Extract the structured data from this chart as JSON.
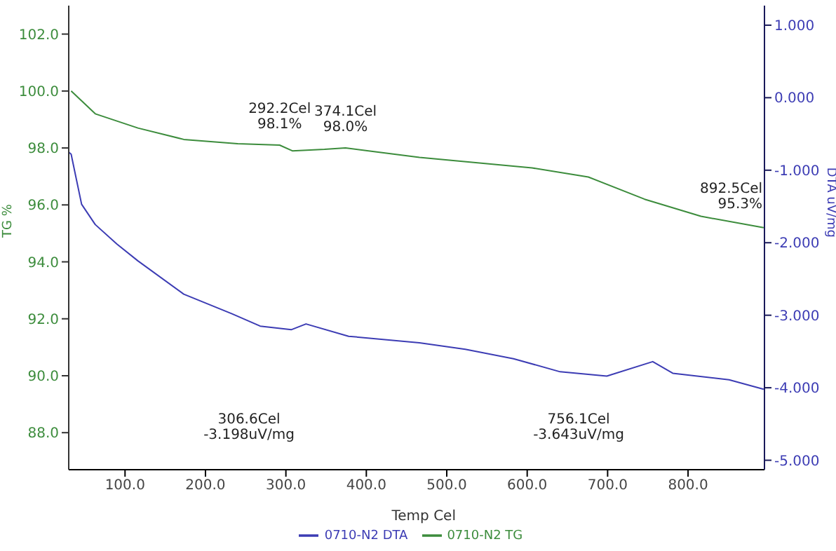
{
  "chart_data": {
    "type": "line",
    "xlabel": "Temp Cel",
    "ylabel": "TG %",
    "y2label": "DTA uV/mg",
    "xlim": [
      30,
      895
    ],
    "xticks": [
      {
        "value": 100,
        "label": "100.0"
      },
      {
        "value": 200,
        "label": "200.0"
      },
      {
        "value": 300,
        "label": "300.0"
      },
      {
        "value": 400,
        "label": "400.0"
      },
      {
        "value": 500,
        "label": "500.0"
      },
      {
        "value": 600,
        "label": "600.0"
      },
      {
        "value": 700,
        "label": "700.0"
      },
      {
        "value": 800,
        "label": "800.0"
      }
    ],
    "ylim": [
      86.7,
      103.0
    ],
    "yticks": [
      {
        "value": 88,
        "label": "88.0"
      },
      {
        "value": 90,
        "label": "90.0"
      },
      {
        "value": 92,
        "label": "92.0"
      },
      {
        "value": 94,
        "label": "94.0"
      },
      {
        "value": 96,
        "label": "96.0"
      },
      {
        "value": 98,
        "label": "98.0"
      },
      {
        "value": 100,
        "label": "100.0"
      },
      {
        "value": 102,
        "label": "102.0"
      }
    ],
    "y2lim": [
      -5.13,
      1.27
    ],
    "y2ticks": [
      {
        "value": -5,
        "label": "-5.000"
      },
      {
        "value": -4,
        "label": "-4.000"
      },
      {
        "value": -3,
        "label": "-3.000"
      },
      {
        "value": -2,
        "label": "-2.000"
      },
      {
        "value": -1,
        "label": "-1.000"
      },
      {
        "value": 0,
        "label": "0.000"
      },
      {
        "value": 1,
        "label": "1.000"
      }
    ],
    "series": [
      {
        "name": "0710-N2  DTA",
        "color": "#3c3cb4",
        "axis": "y2",
        "x": [
          30,
          33,
          46,
          63,
          90,
          116,
          173,
          233,
          268,
          306.6,
          325,
          378,
          466,
          523,
          583,
          641,
          699,
          756.1,
          781,
          851,
          894
        ],
        "values": [
          -0.75,
          -0.78,
          -1.47,
          -1.75,
          -2.02,
          -2.25,
          -2.71,
          -2.98,
          -3.15,
          -3.2,
          -3.12,
          -3.29,
          -3.38,
          -3.47,
          -3.6,
          -3.78,
          -3.84,
          -3.64,
          -3.8,
          -3.89,
          -4.02
        ]
      },
      {
        "name": "0710-N2  TG",
        "color": "#3c8c3c",
        "x": [
          33,
          63,
          116,
          173,
          240,
          292.2,
          308,
          348,
          374.1,
          413,
          466,
          606,
          676,
          746,
          816,
          894
        ],
        "values": [
          100.0,
          99.2,
          98.7,
          98.3,
          98.15,
          98.1,
          97.9,
          97.95,
          98.0,
          97.86,
          97.67,
          97.3,
          96.98,
          96.2,
          95.6,
          95.2
        ]
      }
    ],
    "annotations": [
      {
        "text": "292.2Cel\n98.1%",
        "x": 292.2,
        "y": 98.1
      },
      {
        "text": "374.1Cel\n98.0%",
        "x": 374.1,
        "y": 98.0
      },
      {
        "text": "892.5Cel\n95.3%",
        "x": 892.5,
        "y": 95.3
      },
      "306.6Cel\n-3.198uV/mg",
      "756.1Cel\n-3.643uV/mg"
    ],
    "legend": "bottom",
    "marker": "none",
    "line_style": "solid",
    "grid": false
  }
}
